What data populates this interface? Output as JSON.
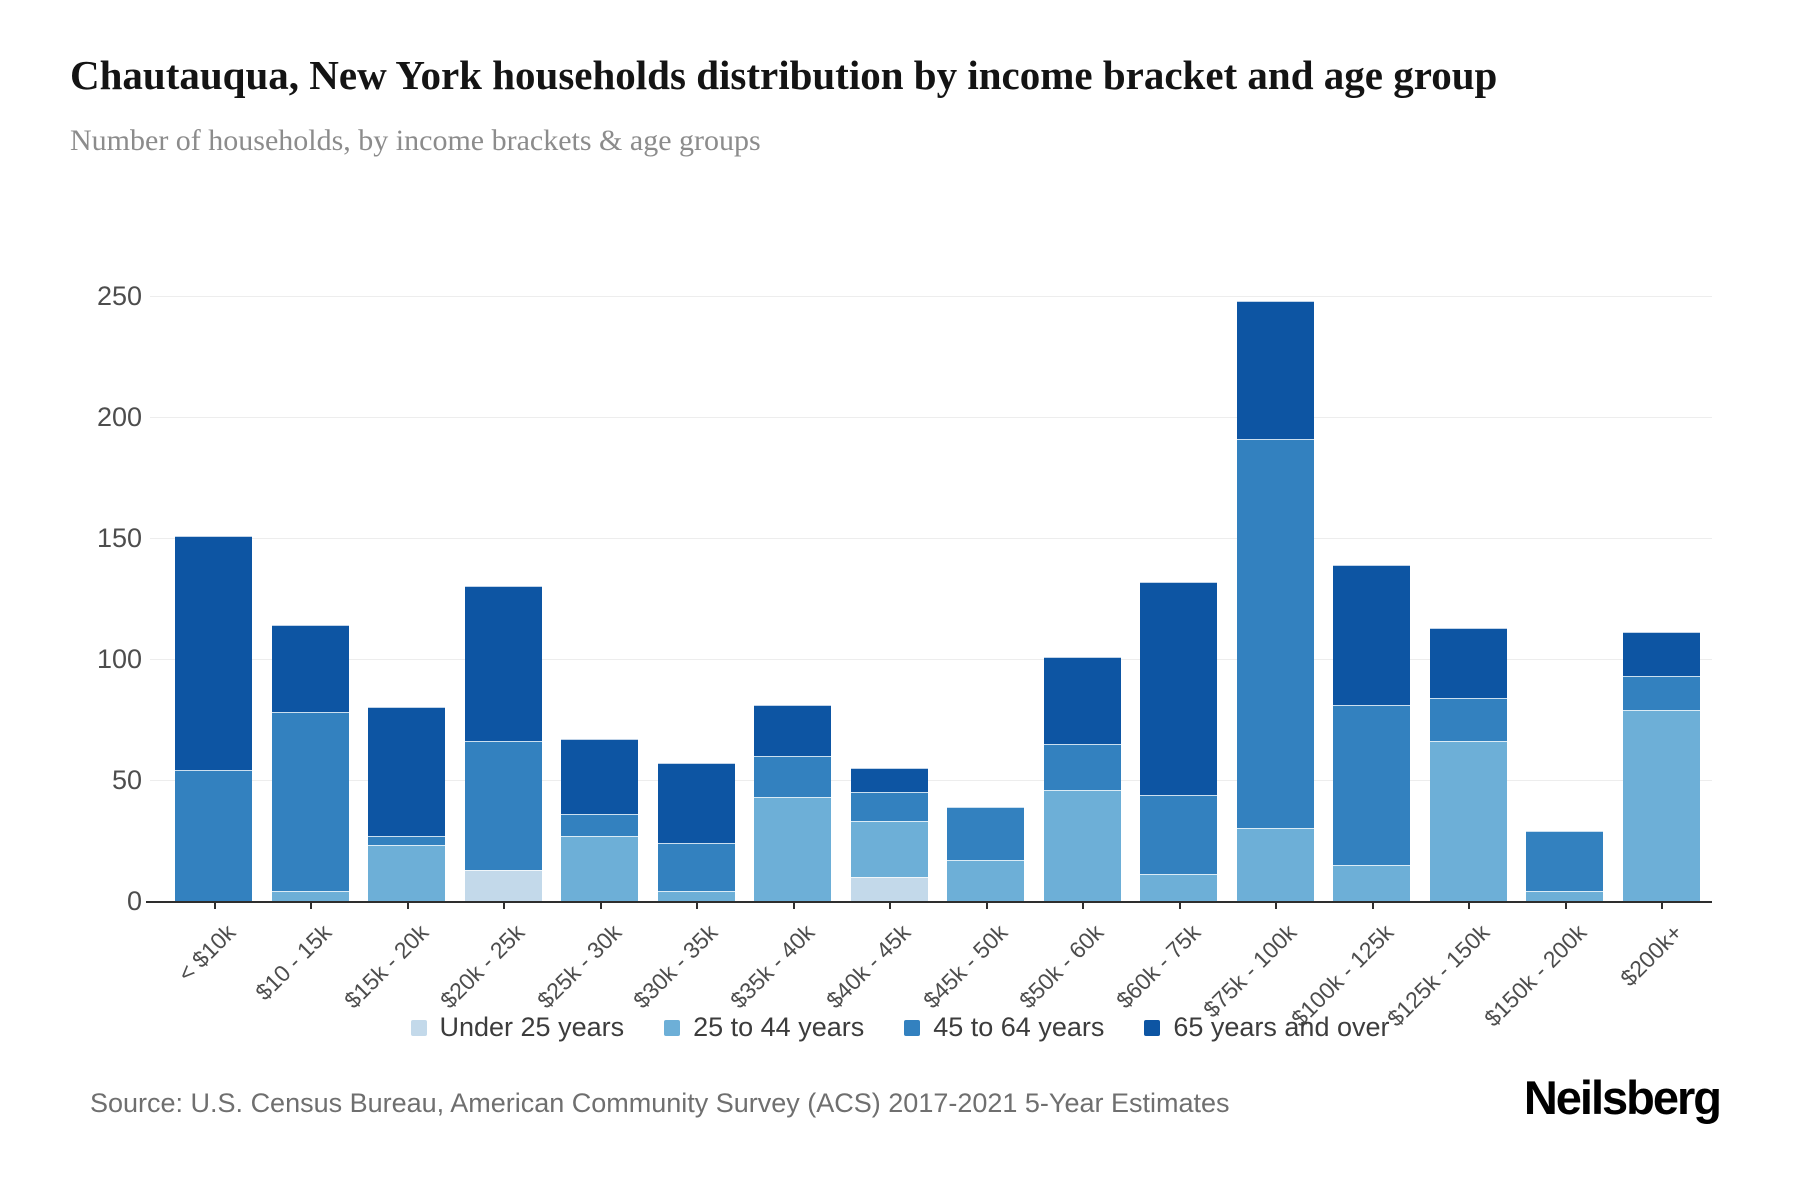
{
  "header": {
    "title": "Chautauqua, New York households distribution by income bracket and age group",
    "subtitle": "Number of households, by income brackets & age groups"
  },
  "footer": {
    "source": "Source: U.S. Census Bureau, American Community Survey (ACS) 2017-2021 5-Year Estimates",
    "brand": "Neilsberg"
  },
  "colors": {
    "under25": "#c3d9ea",
    "age25to44": "#6dafd7",
    "age45to64": "#3381bf",
    "age65plus": "#0d55a3",
    "grid": "#ededed",
    "axis": "#2e2e2e",
    "tick_text": "#4d4d4d"
  },
  "chart_data": {
    "type": "bar",
    "stacked": true,
    "title": "Chautauqua, New York households distribution by income bracket and age group",
    "subtitle": "Number of households, by income brackets & age groups",
    "xlabel": "",
    "ylabel": "Number of households",
    "ylim": [
      0,
      250
    ],
    "yticks": [
      0,
      50,
      100,
      150,
      200,
      250
    ],
    "grid": "horizontal",
    "legend_position": "bottom",
    "categories": [
      "< $10k",
      "$10 - 15k",
      "$15k - 20k",
      "$20k - 25k",
      "$25k - 30k",
      "$30k - 35k",
      "$35k - 40k",
      "$40k - 45k",
      "$45k - 50k",
      "$50k - 60k",
      "$60k - 75k",
      "$75k - 100k",
      "$100k - 125k",
      "$125k - 150k",
      "$150k - 200k",
      "$200k+"
    ],
    "series": [
      {
        "name": "Under 25 years",
        "color_key": "under25",
        "values": [
          0,
          0,
          0,
          13,
          0,
          0,
          0,
          10,
          0,
          0,
          0,
          0,
          0,
          0,
          0,
          0
        ]
      },
      {
        "name": "25 to 44 years",
        "color_key": "age25to44",
        "values": [
          0,
          4,
          23,
          0,
          27,
          4,
          43,
          23,
          17,
          46,
          11,
          30,
          15,
          66,
          4,
          79
        ]
      },
      {
        "name": "45 to 64 years",
        "color_key": "age45to64",
        "values": [
          54,
          74,
          4,
          53,
          9,
          20,
          17,
          12,
          22,
          19,
          33,
          161,
          66,
          18,
          25,
          14
        ]
      },
      {
        "name": "65 years and over",
        "color_key": "age65plus",
        "values": [
          97,
          36,
          53,
          64,
          31,
          33,
          21,
          10,
          0,
          36,
          88,
          57,
          58,
          29,
          0,
          18
        ]
      }
    ],
    "totals": [
      151,
      114,
      80,
      130,
      67,
      57,
      81,
      55,
      39,
      101,
      132,
      248,
      139,
      113,
      29,
      111
    ]
  }
}
